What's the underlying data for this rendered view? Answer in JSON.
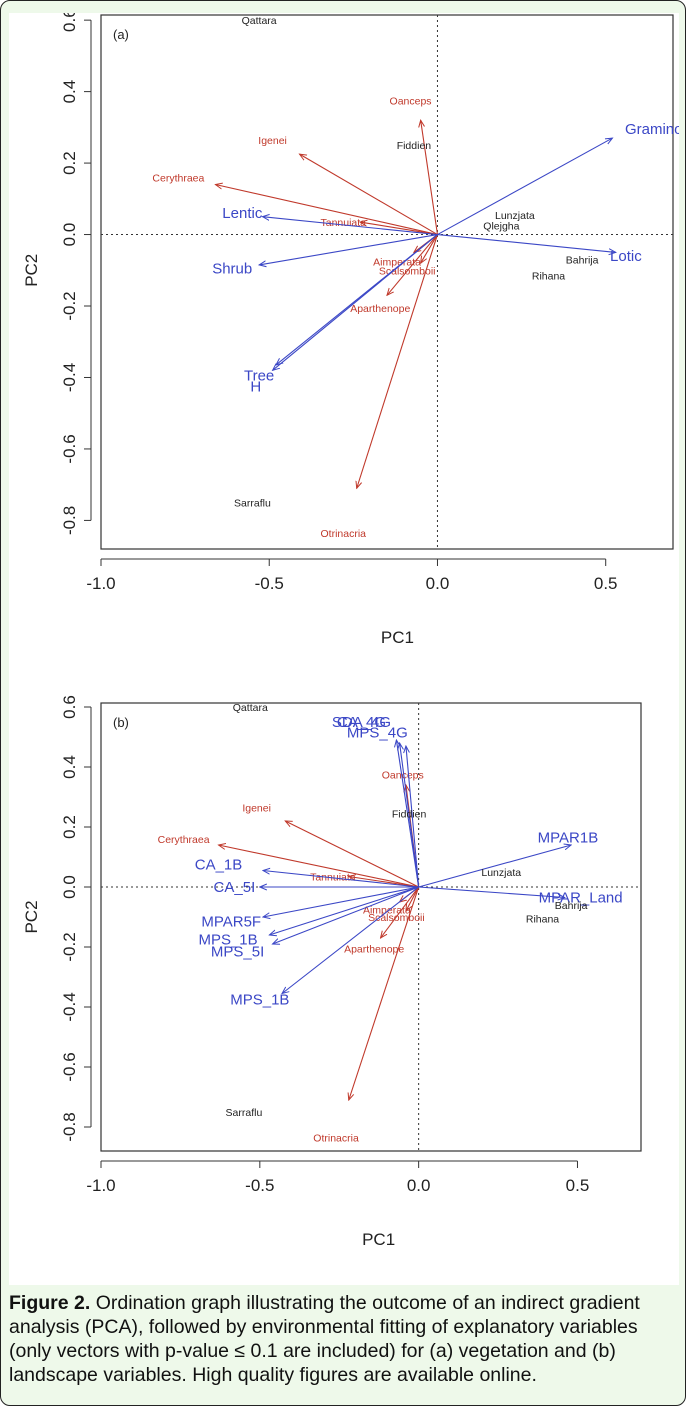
{
  "page_title": "Figure 2",
  "caption": {
    "label": "Figure 2.",
    "text": " Ordination graph illustrating the outcome of an indirect gradient analysis (PCA), followed by environmental fitting of explanatory variables (only vectors with p-value ≤ 0.1 are included) for (a) vegetation and (b) landscape variables. High quality figures are available online."
  },
  "colors": {
    "sites": "#222222",
    "species": "#c0392b",
    "env": "#3b47c6",
    "axes": "#333333"
  },
  "chart_data": [
    {
      "type": "scatter",
      "panel_label": "(a)",
      "xlabel": "PC1",
      "ylabel": "PC2",
      "xlim": [
        -1.0,
        0.7
      ],
      "ylim": [
        -0.88,
        0.62
      ],
      "x_ticks": [
        "-1.0",
        "-0.5",
        "0.0",
        "0.5"
      ],
      "x_tick_values": [
        -1.0,
        -0.5,
        0.0,
        0.5
      ],
      "y_ticks": [
        "-0.8",
        "-0.6",
        "-0.4",
        "-0.2",
        "0.0",
        "0.2",
        "0.4",
        "0.6"
      ],
      "y_tick_values": [
        -0.8,
        -0.6,
        -0.4,
        -0.2,
        0.0,
        0.2,
        0.4,
        0.6
      ],
      "reference_lines": [
        0,
        0
      ],
      "sites": [
        {
          "label": "Qattara",
          "x": -0.53,
          "y": 0.6
        },
        {
          "label": "Fiddien",
          "x": -0.07,
          "y": 0.25
        },
        {
          "label": "Lunzjata",
          "x": 0.23,
          "y": 0.055
        },
        {
          "label": "Qlejgha",
          "x": 0.19,
          "y": 0.025
        },
        {
          "label": "Bahrija",
          "x": 0.43,
          "y": -0.07
        },
        {
          "label": "Rihana",
          "x": 0.33,
          "y": -0.115
        },
        {
          "label": "Sarraflu",
          "x": -0.55,
          "y": -0.75
        }
      ],
      "species": [
        {
          "label": "Oanceps",
          "x": -0.08,
          "y": 0.375,
          "tip": [
            -0.05,
            0.32
          ]
        },
        {
          "label": "Igenei",
          "x": -0.49,
          "y": 0.265,
          "tip": [
            -0.41,
            0.225
          ]
        },
        {
          "label": "Cerythraea",
          "x": -0.77,
          "y": 0.16,
          "tip": [
            -0.66,
            0.14
          ]
        },
        {
          "label": "Tannuiata",
          "x": -0.28,
          "y": 0.035,
          "tip": [
            -0.23,
            0.035
          ]
        },
        {
          "label": "Aimperata",
          "x": -0.12,
          "y": -0.075,
          "tip": [
            -0.07,
            -0.05
          ]
        },
        {
          "label": "Scalsomboii",
          "x": -0.09,
          "y": -0.1,
          "tip": [
            -0.05,
            -0.08
          ]
        },
        {
          "label": "Aparthenope",
          "x": -0.17,
          "y": -0.205,
          "tip": [
            -0.15,
            -0.17
          ]
        },
        {
          "label": "Otrinacria",
          "x": -0.28,
          "y": -0.835,
          "tip": [
            -0.24,
            -0.71
          ]
        }
      ],
      "env_vectors": [
        {
          "label": "Graminoid",
          "x": 0.66,
          "y": 0.295,
          "tip": [
            0.52,
            0.27
          ]
        },
        {
          "label": "Lentic",
          "x": -0.58,
          "y": 0.06,
          "tip": [
            -0.52,
            0.05
          ]
        },
        {
          "label": "Lotic",
          "x": 0.56,
          "y": -0.06,
          "tip": [
            0.53,
            -0.05
          ]
        },
        {
          "label": "Shrub",
          "x": -0.61,
          "y": -0.095,
          "tip": [
            -0.53,
            -0.085
          ]
        },
        {
          "label": "Tree",
          "x": -0.53,
          "y": -0.395,
          "tip": [
            -0.48,
            -0.365
          ]
        },
        {
          "label": "H",
          "x": -0.54,
          "y": -0.425,
          "tip": [
            -0.49,
            -0.38
          ]
        }
      ]
    },
    {
      "type": "scatter",
      "panel_label": "(b)",
      "xlabel": "PC1",
      "ylabel": "PC2",
      "xlim": [
        -1.0,
        0.7
      ],
      "ylim": [
        -0.88,
        0.62
      ],
      "x_ticks": [
        "-1.0",
        "-0.5",
        "0.0",
        "0.5"
      ],
      "x_tick_values": [
        -1.0,
        -0.5,
        0.0,
        0.5
      ],
      "y_ticks": [
        "-0.8",
        "-0.6",
        "-0.4",
        "-0.2",
        "0.0",
        "0.2",
        "0.4",
        "0.6"
      ],
      "y_tick_values": [
        -0.8,
        -0.6,
        -0.4,
        -0.2,
        0.0,
        0.2,
        0.4,
        0.6
      ],
      "reference_lines": [
        0,
        0
      ],
      "sites": [
        {
          "label": "Qattara",
          "x": -0.53,
          "y": 0.6
        },
        {
          "label": "Fiddien",
          "x": -0.03,
          "y": 0.245
        },
        {
          "label": "Lunzjata",
          "x": 0.26,
          "y": 0.05
        },
        {
          "label": "Bahrija",
          "x": 0.48,
          "y": -0.06
        },
        {
          "label": "Rihana",
          "x": 0.39,
          "y": -0.105
        },
        {
          "label": "Sarraflu",
          "x": -0.55,
          "y": -0.75
        }
      ],
      "species": [
        {
          "label": "Oanceps",
          "x": -0.05,
          "y": 0.375,
          "tip": [
            -0.04,
            0.34
          ]
        },
        {
          "label": "Igenei",
          "x": -0.51,
          "y": 0.265,
          "tip": [
            -0.42,
            0.22
          ]
        },
        {
          "label": "Cerythraea",
          "x": -0.74,
          "y": 0.16,
          "tip": [
            -0.63,
            0.14
          ]
        },
        {
          "label": "Tannuiata",
          "x": -0.27,
          "y": 0.035,
          "tip": [
            -0.22,
            0.035
          ]
        },
        {
          "label": "Aimperata",
          "x": -0.1,
          "y": -0.075,
          "tip": [
            -0.06,
            -0.05
          ]
        },
        {
          "label": "Scalsomboii",
          "x": -0.07,
          "y": -0.1,
          "tip": [
            -0.04,
            -0.08
          ]
        },
        {
          "label": "Aparthenope",
          "x": -0.14,
          "y": -0.205,
          "tip": [
            -0.12,
            -0.17
          ]
        },
        {
          "label": "Otrinacria",
          "x": -0.26,
          "y": -0.835,
          "tip": [
            -0.22,
            -0.71
          ]
        }
      ],
      "env_vectors": [
        {
          "label": "SDA_4G",
          "x": -0.18,
          "y": 0.55,
          "tip": [
            -0.07,
            0.49
          ]
        },
        {
          "label": "CA_4G",
          "x": -0.18,
          "y": 0.55,
          "tip": [
            -0.06,
            0.48
          ]
        },
        {
          "label": "MPS_4G",
          "x": -0.13,
          "y": 0.515,
          "tip": [
            -0.04,
            0.47
          ]
        },
        {
          "label": "MPAR1B",
          "x": 0.47,
          "y": 0.165,
          "tip": [
            0.48,
            0.14
          ]
        },
        {
          "label": "CA_1B",
          "x": -0.63,
          "y": 0.075,
          "tip": [
            -0.49,
            0.055
          ]
        },
        {
          "label": "CA_5I",
          "x": -0.58,
          "y": 0.0,
          "tip": [
            -0.5,
            0.0
          ]
        },
        {
          "label": "MPAR_Land",
          "x": 0.51,
          "y": -0.035,
          "tip": [
            0.46,
            -0.035
          ]
        },
        {
          "label": "MPAR5F",
          "x": -0.59,
          "y": -0.115,
          "tip": [
            -0.49,
            -0.1
          ]
        },
        {
          "label": "MPS_1B",
          "x": -0.6,
          "y": -0.175,
          "tip": [
            -0.47,
            -0.16
          ]
        },
        {
          "label": "MPS_5I",
          "x": -0.57,
          "y": -0.215,
          "tip": [
            -0.46,
            -0.19
          ]
        },
        {
          "label": "MPS_1B",
          "x": -0.5,
          "y": -0.375,
          "tip": [
            -0.43,
            -0.355
          ]
        }
      ]
    }
  ]
}
